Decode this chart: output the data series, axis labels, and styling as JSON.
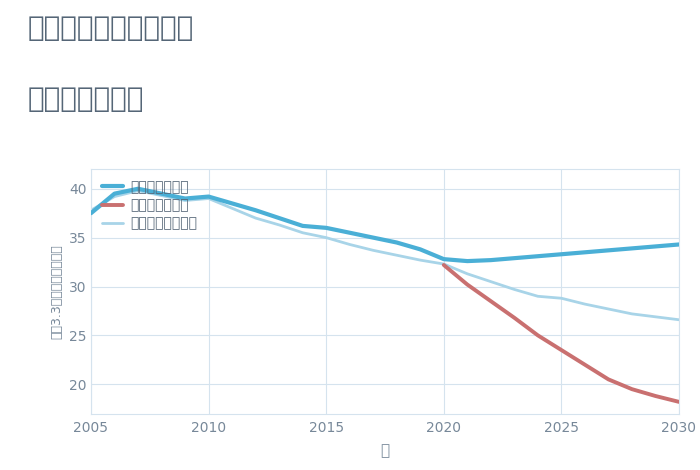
{
  "title_line1": "兵庫県姫路市東今宿の",
  "title_line2": "土地の価格推移",
  "xlabel": "年",
  "ylabel": "坪（3.3㎡）単価（万円）",
  "background_color": "#ffffff",
  "plot_background": "#ffffff",
  "good_scenario": {
    "label": "グッドシナリオ",
    "color": "#4aafd6",
    "x": [
      2005,
      2006,
      2007,
      2008,
      2009,
      2010,
      2011,
      2012,
      2013,
      2014,
      2015,
      2016,
      2017,
      2018,
      2019,
      2020,
      2021,
      2022,
      2023,
      2024,
      2025,
      2026,
      2027,
      2028,
      2029,
      2030
    ],
    "y": [
      37.5,
      39.5,
      40.0,
      39.5,
      39.0,
      39.2,
      38.5,
      37.8,
      37.0,
      36.2,
      36.0,
      35.5,
      35.0,
      34.5,
      33.8,
      32.8,
      32.6,
      32.7,
      32.9,
      33.1,
      33.3,
      33.5,
      33.7,
      33.9,
      34.1,
      34.3
    ],
    "linewidth": 3.0
  },
  "bad_scenario": {
    "label": "バッドシナリオ",
    "color": "#c97070",
    "x": [
      2020,
      2021,
      2022,
      2023,
      2024,
      2025,
      2026,
      2027,
      2028,
      2029,
      2030
    ],
    "y": [
      32.2,
      30.2,
      28.5,
      26.8,
      25.0,
      23.5,
      22.0,
      20.5,
      19.5,
      18.8,
      18.2
    ],
    "linewidth": 2.8
  },
  "normal_scenario": {
    "label": "ノーマルシナリオ",
    "color": "#a8d4e8",
    "x": [
      2005,
      2006,
      2007,
      2008,
      2009,
      2010,
      2011,
      2012,
      2013,
      2014,
      2015,
      2016,
      2017,
      2018,
      2019,
      2020,
      2021,
      2022,
      2023,
      2024,
      2025,
      2026,
      2027,
      2028,
      2029,
      2030
    ],
    "y": [
      37.8,
      39.2,
      39.8,
      39.3,
      38.8,
      39.0,
      38.0,
      37.0,
      36.3,
      35.5,
      35.0,
      34.3,
      33.7,
      33.2,
      32.7,
      32.3,
      31.3,
      30.5,
      29.7,
      29.0,
      28.8,
      28.2,
      27.7,
      27.2,
      26.9,
      26.6
    ],
    "linewidth": 2.0
  },
  "xlim": [
    2005,
    2030
  ],
  "ylim": [
    17,
    42
  ],
  "xticks": [
    2005,
    2010,
    2015,
    2020,
    2025,
    2030
  ],
  "yticks": [
    20,
    25,
    30,
    35,
    40
  ],
  "grid_color": "#d5e3ee",
  "title_color": "#556677",
  "axis_color": "#778899",
  "tick_color": "#778899",
  "legend_fontsize": 10,
  "title_fontsize": 20,
  "axis_fontsize": 11
}
